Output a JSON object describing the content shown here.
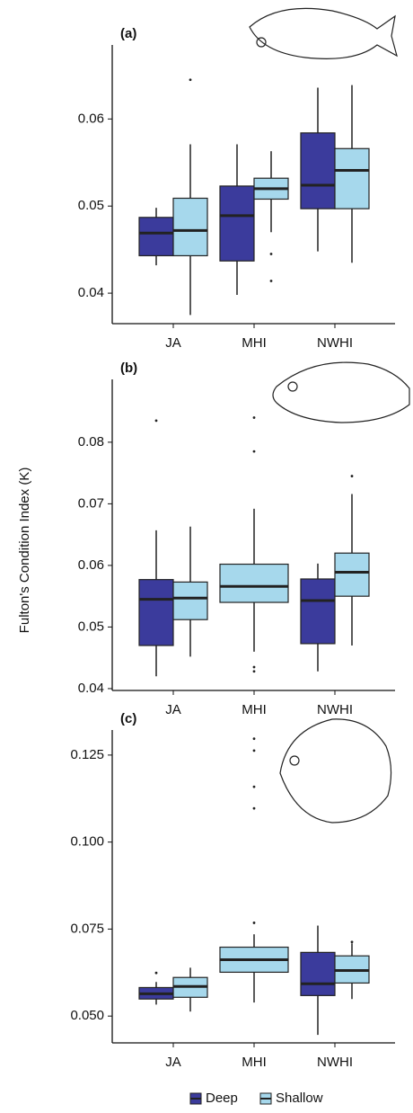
{
  "chart_data": [
    {
      "type": "box",
      "title": "(a)",
      "categories": [
        "JA",
        "MHI",
        "NWHI"
      ],
      "ylim": [
        0.0365,
        0.0685
      ],
      "yticks": [
        0.04,
        0.05,
        0.06
      ],
      "series": [
        {
          "name": "Deep",
          "color": "#3b3b9c",
          "values": [
            {
              "min": 0.0432,
              "q1": 0.0443,
              "median": 0.0469,
              "q3": 0.0487,
              "max": 0.0498
            },
            {
              "min": 0.0398,
              "q1": 0.0437,
              "median": 0.0489,
              "q3": 0.0523,
              "max": 0.0571
            },
            {
              "min": 0.0448,
              "q1": 0.0497,
              "median": 0.0524,
              "q3": 0.0584,
              "max": 0.0636
            }
          ]
        },
        {
          "name": "Shallow",
          "color": "#a6d8ec",
          "values": [
            {
              "min": 0.0375,
              "q1": 0.0443,
              "median": 0.0472,
              "q3": 0.0509,
              "max": 0.0571,
              "outliers": [
                0.0645
              ]
            },
            {
              "min": 0.047,
              "q1": 0.0508,
              "median": 0.052,
              "q3": 0.0532,
              "max": 0.0563,
              "outliers": [
                0.0445,
                0.0414
              ]
            },
            {
              "min": 0.0435,
              "q1": 0.0497,
              "median": 0.0541,
              "q3": 0.0566,
              "max": 0.0639
            }
          ]
        }
      ]
    },
    {
      "type": "box",
      "title": "(b)",
      "categories": [
        "JA",
        "MHI",
        "NWHI"
      ],
      "ylabel": "Fulton's Condition Index  (K)",
      "ylim": [
        0.0397,
        0.0902
      ],
      "yticks": [
        0.04,
        0.05,
        0.06,
        0.07,
        0.08
      ],
      "series": [
        {
          "name": "Deep",
          "color": "#3b3b9c",
          "values": [
            {
              "min": 0.042,
              "q1": 0.047,
              "median": 0.0545,
              "q3": 0.0577,
              "max": 0.0657,
              "outliers": [
                0.0835
              ]
            },
            null,
            {
              "min": 0.0428,
              "q1": 0.0473,
              "median": 0.0543,
              "q3": 0.0578,
              "max": 0.0603
            }
          ]
        },
        {
          "name": "Shallow",
          "color": "#a6d8ec",
          "values": [
            {
              "min": 0.0452,
              "q1": 0.0512,
              "median": 0.0547,
              "q3": 0.0573,
              "max": 0.0663
            },
            {
              "min": 0.046,
              "q1": 0.054,
              "median": 0.0566,
              "q3": 0.0602,
              "max": 0.0692,
              "outliers": [
                0.0435,
                0.0428,
                0.0785,
                0.084
              ]
            },
            {
              "min": 0.047,
              "q1": 0.055,
              "median": 0.0589,
              "q3": 0.062,
              "max": 0.0716,
              "outliers": [
                0.0745
              ]
            }
          ]
        }
      ]
    },
    {
      "type": "box",
      "title": "(c)",
      "categories": [
        "JA",
        "MHI",
        "NWHI"
      ],
      "ylim": [
        0.0423,
        0.1322
      ],
      "yticks": [
        {
          "value": 0.05,
          "label": "0.050"
        },
        {
          "value": 0.075,
          "label": "0.075"
        },
        {
          "value": 0.1,
          "label": "0.100"
        },
        {
          "value": 0.125,
          "label": "0.125"
        }
      ],
      "series": [
        {
          "name": "Deep",
          "color": "#3b3b9c",
          "values": [
            {
              "min": 0.0533,
              "q1": 0.0549,
              "median": 0.0564,
              "q3": 0.0582,
              "max": 0.0598,
              "outliers": [
                0.0624
              ]
            },
            null,
            {
              "min": 0.0446,
              "q1": 0.0559,
              "median": 0.0593,
              "q3": 0.0683,
              "max": 0.076
            }
          ]
        },
        {
          "name": "Shallow",
          "color": "#a6d8ec",
          "values": [
            {
              "min": 0.0513,
              "q1": 0.0554,
              "median": 0.0585,
              "q3": 0.0611,
              "max": 0.0639
            },
            {
              "min": 0.0539,
              "q1": 0.0626,
              "median": 0.0662,
              "q3": 0.0698,
              "max": 0.0735,
              "outliers": [
                0.0768,
                0.1097,
                0.1159,
                0.1263,
                0.1297
              ]
            },
            {
              "min": 0.0549,
              "q1": 0.0595,
              "median": 0.0631,
              "q3": 0.0673,
              "max": 0.0709,
              "outliers": [
                0.0713
              ]
            }
          ]
        }
      ]
    }
  ]
}
